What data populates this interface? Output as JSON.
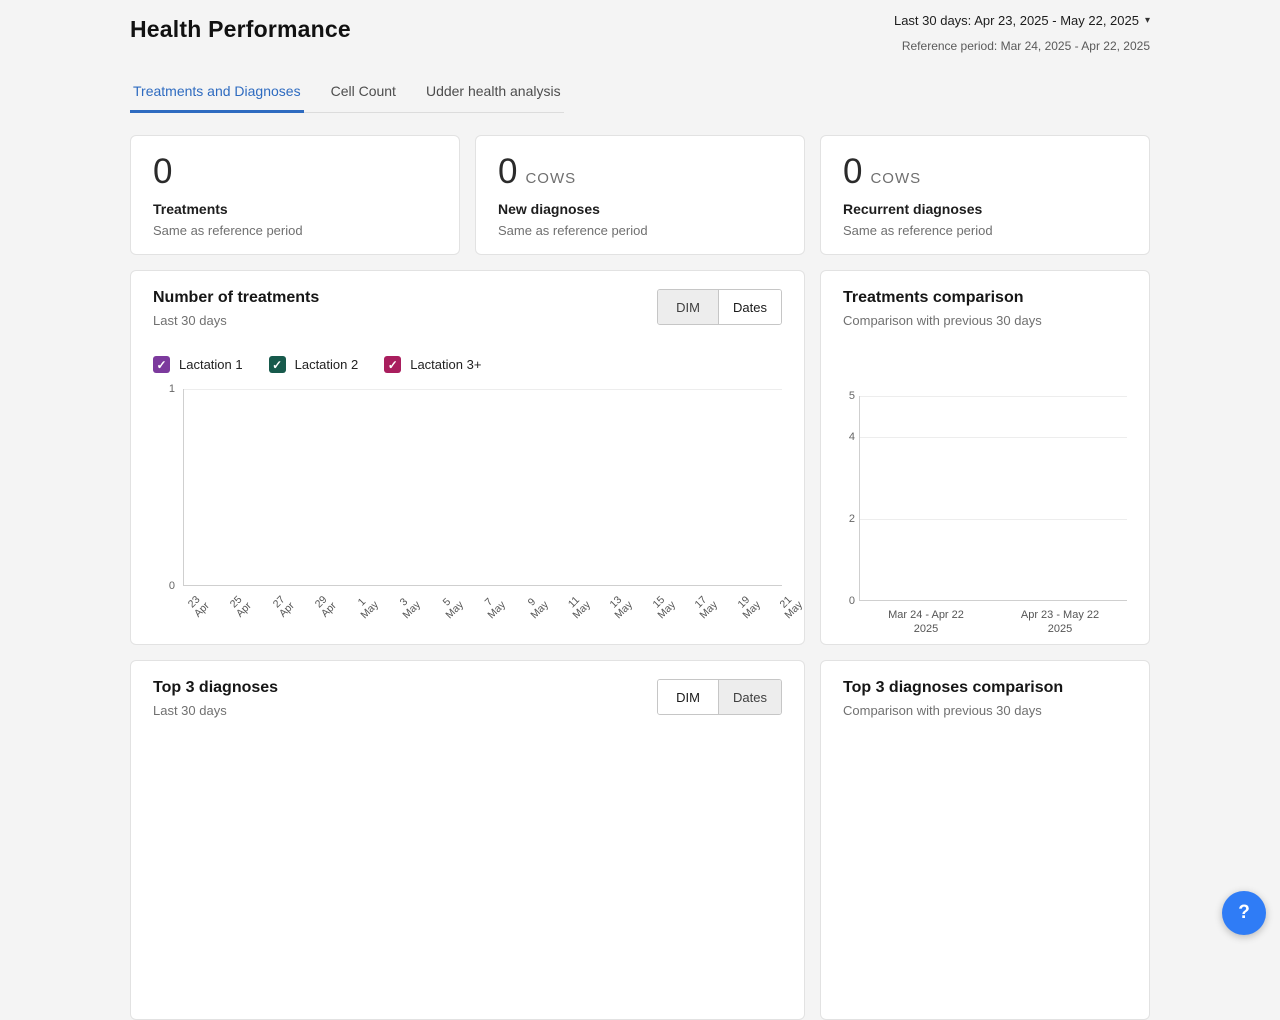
{
  "header": {
    "title": "Health Performance",
    "period_selector": "Last 30 days: Apr 23, 2025 - May 22, 2025",
    "reference_period": "Reference period: Mar 24, 2025 - Apr 22, 2025"
  },
  "tabs": {
    "active": "Treatments and Diagnoses",
    "items": [
      {
        "label": "Treatments and Diagnoses"
      },
      {
        "label": "Cell Count"
      },
      {
        "label": "Udder health analysis"
      }
    ]
  },
  "stat_cards": [
    {
      "value": "0",
      "unit": "",
      "label": "Treatments",
      "note": "Same as reference period"
    },
    {
      "value": "0",
      "unit": "COWS",
      "label": "New diagnoses",
      "note": "Same as reference period"
    },
    {
      "value": "0",
      "unit": "COWS",
      "label": "Recurrent diagnoses",
      "note": "Same as reference period"
    }
  ],
  "cards": {
    "number_of_treatments": {
      "title": "Number of treatments",
      "subtitle": "Last 30 days",
      "toggle": {
        "options": [
          "DIM",
          "Dates"
        ],
        "selected": "Dates"
      },
      "legend": [
        {
          "label": "Lactation 1",
          "color": "#7c3a9d",
          "checked": true
        },
        {
          "label": "Lactation 2",
          "color": "#175a4c",
          "checked": true
        },
        {
          "label": "Lactation 3+",
          "color": "#a91e5e",
          "checked": true
        }
      ],
      "y_ticks": [
        "1",
        "0"
      ],
      "x_labels": [
        "23\nApr",
        "25\nApr",
        "27\nApr",
        "29\nApr",
        "1\nMay",
        "3\nMay",
        "5\nMay",
        "7\nMay",
        "9\nMay",
        "11\nMay",
        "13\nMay",
        "15\nMay",
        "17\nMay",
        "19\nMay",
        "21\nMay"
      ]
    },
    "treatments_comparison": {
      "title": "Treatments comparison",
      "subtitle": "Comparison with previous 30 days",
      "y_ticks": [
        "5",
        "4",
        "2",
        "0"
      ],
      "x_labels": [
        "Mar 24 - Apr 22\n2025",
        "Apr 23 - May 22\n2025"
      ]
    },
    "top3_diagnoses": {
      "title": "Top 3 diagnoses",
      "subtitle": "Last 30 days",
      "toggle": {
        "options": [
          "DIM",
          "Dates"
        ],
        "selected": "DIM"
      }
    },
    "top3_comparison": {
      "title": "Top 3 diagnoses comparison",
      "subtitle": "Comparison with previous 30 days"
    }
  },
  "chart_data": [
    {
      "type": "line",
      "title": "Number of treatments",
      "subtitle": "Last 30 days",
      "x_tick_labels": [
        "23 Apr",
        "25 Apr",
        "27 Apr",
        "29 Apr",
        "1 May",
        "3 May",
        "5 May",
        "7 May",
        "9 May",
        "11 May",
        "13 May",
        "15 May",
        "17 May",
        "19 May",
        "21 May"
      ],
      "ylim": [
        0,
        1
      ],
      "y_ticks": [
        0,
        1
      ],
      "series": [
        {
          "name": "Lactation 1",
          "color": "#7c3a9d",
          "values": []
        },
        {
          "name": "Lactation 2",
          "color": "#175a4c",
          "values": []
        },
        {
          "name": "Lactation 3+",
          "color": "#a91e5e",
          "values": []
        }
      ],
      "empty": true
    },
    {
      "type": "bar",
      "title": "Treatments comparison",
      "subtitle": "Comparison with previous 30 days",
      "categories": [
        "Mar 24 - Apr 22 2025",
        "Apr 23 - May 22 2025"
      ],
      "values": [
        0,
        0
      ],
      "ylim": [
        0,
        5
      ],
      "y_ticks": [
        0,
        2,
        4,
        5
      ],
      "empty": true
    },
    {
      "type": "bar",
      "title": "Top 3 diagnoses",
      "subtitle": "Last 30 days",
      "categories": [],
      "values": [],
      "empty": true
    },
    {
      "type": "bar",
      "title": "Top 3 diagnoses comparison",
      "subtitle": "Comparison with previous 30 days",
      "categories": [],
      "values": [],
      "empty": true
    }
  ],
  "icons": {
    "check": "✓",
    "caret_down": "▾",
    "help": "?"
  },
  "colors": {
    "accent_blue": "#2e6bc0",
    "lactation1": "#7c3a9d",
    "lactation2": "#175a4c",
    "lactation3plus": "#a91e5e",
    "help_button": "#2f7cf6",
    "page_background": "#f4f4f4"
  }
}
